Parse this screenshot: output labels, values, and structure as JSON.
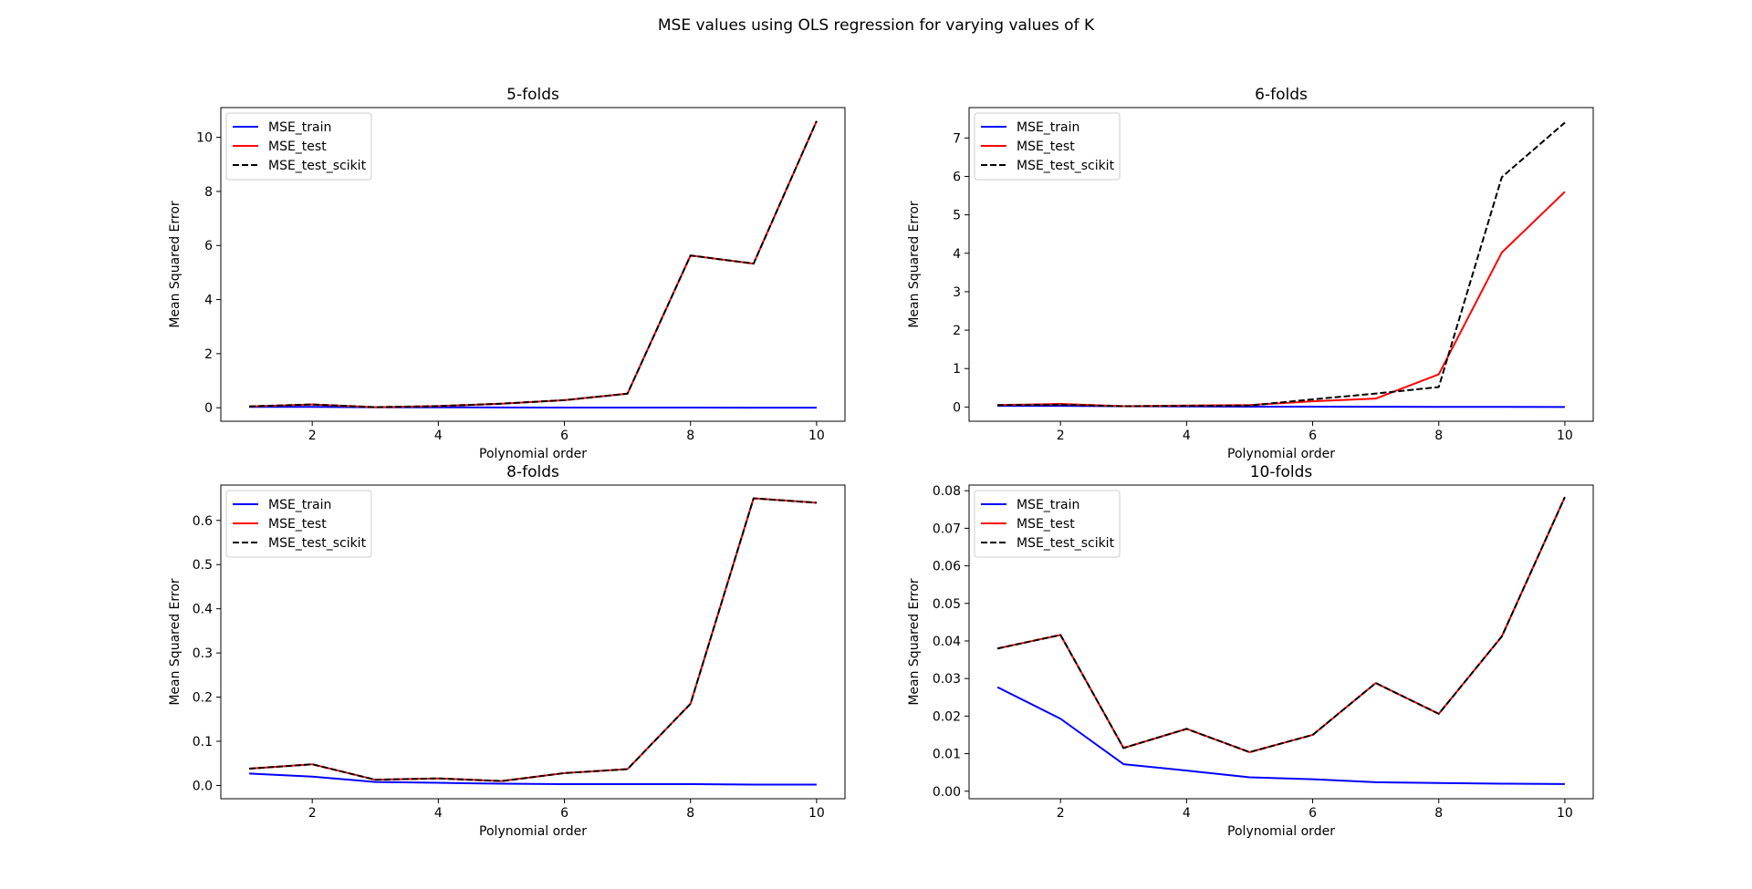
{
  "figure": {
    "title": "MSE values using OLS regression for varying values of K",
    "colors": {
      "train": "#0000ff",
      "test": "#ff0000",
      "scikit": "#000000"
    }
  },
  "chart_data": [
    {
      "type": "line",
      "title": "5-folds",
      "xlabel": "Polynomial order",
      "ylabel": "Mean Squared Error",
      "x": [
        1,
        2,
        3,
        4,
        5,
        6,
        7,
        8,
        9,
        10
      ],
      "xticks": [
        2,
        4,
        6,
        8,
        10
      ],
      "yticks": [
        0,
        2,
        4,
        6,
        8,
        10
      ],
      "xlim": [
        0.55,
        10.45
      ],
      "ylim": [
        -0.5,
        11.1
      ],
      "legend": "upper-left",
      "series": [
        {
          "name": "MSE_train",
          "color": "#0000ff",
          "dash": "solid",
          "values": [
            0.03,
            0.03,
            0.02,
            0.015,
            0.01,
            0.008,
            0.006,
            0.004,
            0.003,
            0.002
          ]
        },
        {
          "name": "MSE_test",
          "color": "#ff0000",
          "dash": "solid",
          "values": [
            0.05,
            0.12,
            0.02,
            0.06,
            0.15,
            0.28,
            0.52,
            5.63,
            5.33,
            10.6
          ]
        },
        {
          "name": "MSE_test_scikit",
          "color": "#000000",
          "dash": "dashed",
          "values": [
            0.05,
            0.12,
            0.02,
            0.06,
            0.15,
            0.28,
            0.52,
            5.63,
            5.33,
            10.6
          ]
        }
      ]
    },
    {
      "type": "line",
      "title": "6-folds",
      "xlabel": "Polynomial order",
      "ylabel": "Mean Squared Error",
      "x": [
        1,
        2,
        3,
        4,
        5,
        6,
        7,
        8,
        9,
        10
      ],
      "xticks": [
        2,
        4,
        6,
        8,
        10
      ],
      "yticks": [
        0,
        1,
        2,
        3,
        4,
        5,
        6,
        7
      ],
      "xlim": [
        0.55,
        10.45
      ],
      "ylim": [
        -0.37,
        7.79
      ],
      "legend": "upper-left",
      "series": [
        {
          "name": "MSE_train",
          "color": "#0000ff",
          "dash": "solid",
          "values": [
            0.03,
            0.03,
            0.02,
            0.015,
            0.01,
            0.008,
            0.006,
            0.004,
            0.003,
            0.002
          ]
        },
        {
          "name": "MSE_test",
          "color": "#ff0000",
          "dash": "solid",
          "values": [
            0.05,
            0.08,
            0.02,
            0.04,
            0.05,
            0.15,
            0.22,
            0.85,
            4.02,
            5.6
          ]
        },
        {
          "name": "MSE_test_scikit",
          "color": "#000000",
          "dash": "dashed",
          "values": [
            0.05,
            0.06,
            0.02,
            0.03,
            0.04,
            0.2,
            0.35,
            0.52,
            5.98,
            7.4
          ]
        }
      ]
    },
    {
      "type": "line",
      "title": "8-folds",
      "xlabel": "Polynomial order",
      "ylabel": "Mean Squared Error",
      "x": [
        1,
        2,
        3,
        4,
        5,
        6,
        7,
        8,
        9,
        10
      ],
      "xticks": [
        2,
        4,
        6,
        8,
        10
      ],
      "yticks": [
        0.0,
        0.1,
        0.2,
        0.3,
        0.4,
        0.5,
        0.6
      ],
      "xlim": [
        0.55,
        10.45
      ],
      "ylim": [
        -0.03,
        0.68
      ],
      "legend": "upper-left",
      "series": [
        {
          "name": "MSE_train",
          "color": "#0000ff",
          "dash": "solid",
          "values": [
            0.027,
            0.02,
            0.008,
            0.006,
            0.004,
            0.003,
            0.003,
            0.003,
            0.002,
            0.002
          ]
        },
        {
          "name": "MSE_test",
          "color": "#ff0000",
          "dash": "solid",
          "values": [
            0.038,
            0.048,
            0.013,
            0.016,
            0.01,
            0.028,
            0.037,
            0.185,
            0.65,
            0.64
          ]
        },
        {
          "name": "MSE_test_scikit",
          "color": "#000000",
          "dash": "dashed",
          "values": [
            0.038,
            0.048,
            0.013,
            0.016,
            0.01,
            0.028,
            0.037,
            0.185,
            0.65,
            0.64
          ]
        }
      ]
    },
    {
      "type": "line",
      "title": "10-folds",
      "xlabel": "Polynomial order",
      "ylabel": "Mean Squared Error",
      "x": [
        1,
        2,
        3,
        4,
        5,
        6,
        7,
        8,
        9,
        10
      ],
      "xticks": [
        2,
        4,
        6,
        8,
        10
      ],
      "yticks": [
        0.0,
        0.01,
        0.02,
        0.03,
        0.04,
        0.05,
        0.06,
        0.07,
        0.08
      ],
      "xlim": [
        0.55,
        10.45
      ],
      "ylim": [
        -0.002,
        0.0815
      ],
      "legend": "upper-left",
      "series": [
        {
          "name": "MSE_train",
          "color": "#0000ff",
          "dash": "solid",
          "values": [
            0.0277,
            0.0193,
            0.0072,
            0.0055,
            0.0037,
            0.0032,
            0.0024,
            0.0022,
            0.002,
            0.0019
          ]
        },
        {
          "name": "MSE_test",
          "color": "#ff0000",
          "dash": "solid",
          "values": [
            0.038,
            0.0416,
            0.0115,
            0.0166,
            0.0104,
            0.015,
            0.0288,
            0.0206,
            0.0412,
            0.0783
          ]
        },
        {
          "name": "MSE_test_scikit",
          "color": "#000000",
          "dash": "dashed",
          "values": [
            0.038,
            0.0416,
            0.0115,
            0.0166,
            0.0104,
            0.015,
            0.0288,
            0.0206,
            0.0412,
            0.0783
          ]
        }
      ]
    }
  ]
}
